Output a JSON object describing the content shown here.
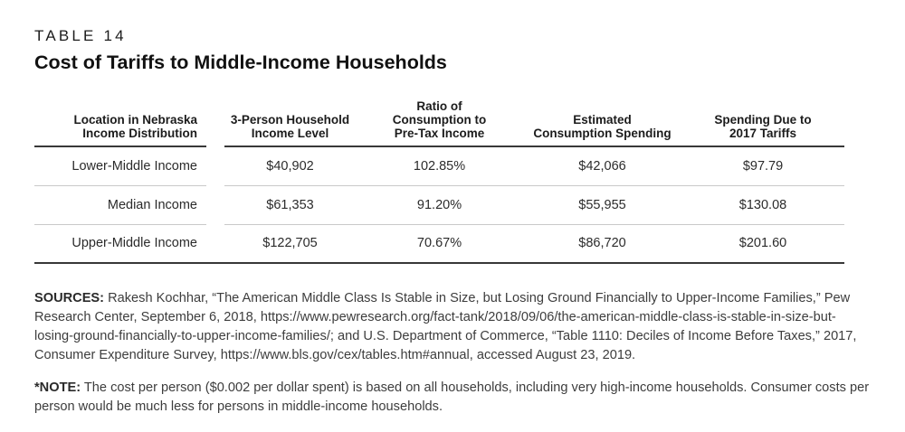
{
  "page": {
    "background": "#ffffff",
    "text_color": "#231f20",
    "rule_dark": "#383838",
    "rule_light": "#c9c9c9"
  },
  "header": {
    "label": "TABLE 14",
    "title": "Cost of Tariffs to Middle-Income Households"
  },
  "table": {
    "columns": [
      "Location in Nebraska\nIncome Distribution",
      "3-Person Household\nIncome Level",
      "Ratio of\nConsumption to\nPre-Tax Income",
      "Estimated\nConsumption Spending",
      "Spending Due to\n2017 Tariffs"
    ],
    "rows": [
      [
        "Lower-Middle Income",
        "$40,902",
        "102.85%",
        "$42,066",
        "$97.79"
      ],
      [
        "Median Income",
        "$61,353",
        "91.20%",
        "$55,955",
        "$130.08"
      ],
      [
        "Upper-Middle Income",
        "$122,705",
        "70.67%",
        "$86,720",
        "$201.60"
      ]
    ]
  },
  "sources": {
    "label": "SOURCES:",
    "text": "Rakesh Kochhar, “The American Middle Class Is Stable in Size, but Losing Ground Financially to Upper-Income Families,” Pew Research Center, September 6, 2018, https://www.pewresearch.org/fact-tank/2018/09/06/the-american-middle-class-is-stable-in-size-but-losing-ground-financially-to-upper-income-families/; and U.S. Department of Commerce, “Table 1110: Deciles of Income Before Taxes,” 2017, Consumer Expenditure Survey, https://www.bls.gov/cex/tables.htm#annual, accessed August 23, 2019."
  },
  "note": {
    "label": "*NOTE:",
    "text": "The cost per person ($0.002 per dollar spent) is based on all households, including very high-income households. Consumer costs per person would be much less for persons in middle-income households."
  },
  "chart_data": {
    "type": "table",
    "title": "Cost of Tariffs to Middle-Income Households",
    "columns": [
      "Location in Nebraska Income Distribution",
      "3-Person Household Income Level",
      "Ratio of Consumption to Pre-Tax Income",
      "Estimated Consumption Spending",
      "Spending Due to 2017 Tariffs"
    ],
    "rows": [
      [
        "Lower-Middle Income",
        "$40,902",
        "102.85%",
        "$42,066",
        "$97.79"
      ],
      [
        "Median Income",
        "$61,353",
        "91.20%",
        "$55,955",
        "$130.08"
      ],
      [
        "Upper-Middle Income",
        "$122,705",
        "70.67%",
        "$86,720",
        "$201.60"
      ]
    ]
  }
}
